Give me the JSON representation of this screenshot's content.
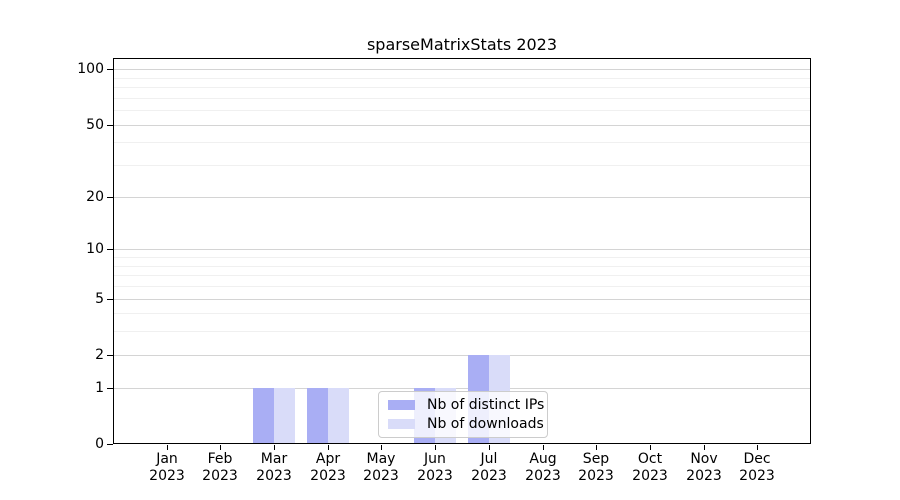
{
  "chart_data": {
    "type": "bar",
    "title": "sparseMatrixStats 2023",
    "xlabel": "",
    "ylabel": "",
    "months": [
      "Jan",
      "Feb",
      "Mar",
      "Apr",
      "May",
      "Jun",
      "Jul",
      "Aug",
      "Sep",
      "Oct",
      "Nov",
      "Dec"
    ],
    "year": "2023",
    "categories": [
      "Jan 2023",
      "Feb 2023",
      "Mar 2023",
      "Apr 2023",
      "May 2023",
      "Jun 2023",
      "Jul 2023",
      "Aug 2023",
      "Sep 2023",
      "Oct 2023",
      "Nov 2023",
      "Dec 2023"
    ],
    "series": [
      {
        "name": "Nb of distinct IPs",
        "color": "#a9aef4",
        "values": [
          0,
          0,
          1,
          1,
          0,
          1,
          2,
          0,
          0,
          0,
          0,
          0
        ]
      },
      {
        "name": "Nb of downloads",
        "color": "#d9dcf9",
        "values": [
          0,
          0,
          1,
          1,
          0,
          1,
          2,
          0,
          0,
          0,
          0,
          0
        ]
      }
    ],
    "y_axis": {
      "scale": "log10(value+1)",
      "ticks": [
        0,
        1,
        2,
        5,
        10,
        20,
        50,
        100
      ],
      "minor_ticks": [
        3,
        4,
        6,
        7,
        8,
        9,
        30,
        40,
        60,
        70,
        80,
        90
      ],
      "top_value": 115
    },
    "legend": {
      "position": "lower center",
      "labels": [
        "Nb of distinct IPs",
        "Nb of downloads"
      ]
    },
    "grid": true
  },
  "colors": {
    "bar_distinct_ips": "#a9aef4",
    "bar_downloads": "#d9dcf9",
    "grid_major": "#d4d4d4",
    "grid_minor": "#f0f0f0",
    "axis": "#000000",
    "background": "#ffffff"
  }
}
